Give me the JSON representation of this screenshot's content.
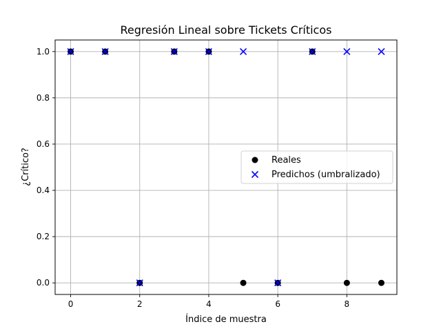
{
  "chart_data": {
    "type": "scatter",
    "title": "Regresión Lineal sobre Tickets Críticos",
    "xlabel": "Índice de muestra",
    "ylabel": "¿Crítico?",
    "xlim": [
      -0.45,
      9.45
    ],
    "ylim": [
      -0.05,
      1.05
    ],
    "xticks": [
      0,
      2,
      4,
      6,
      8
    ],
    "xtick_labels": [
      "0",
      "2",
      "4",
      "6",
      "8"
    ],
    "yticks": [
      0.0,
      0.2,
      0.4,
      0.6,
      0.8,
      1.0
    ],
    "ytick_labels": [
      "0.0",
      "0.2",
      "0.4",
      "0.6",
      "0.8",
      "1.0"
    ],
    "grid": true,
    "legend_position": "center-right",
    "series": [
      {
        "name": "Reales",
        "marker": "circle",
        "color": "#000000",
        "x": [
          0,
          1,
          2,
          3,
          4,
          5,
          6,
          7,
          8,
          9
        ],
        "y": [
          1,
          1,
          0,
          1,
          1,
          0,
          0,
          1,
          0,
          0
        ]
      },
      {
        "name": "Predichos (umbralizado)",
        "marker": "x",
        "color": "#0000ff",
        "x": [
          0,
          1,
          2,
          3,
          4,
          5,
          6,
          7,
          8,
          9
        ],
        "y": [
          1,
          1,
          0,
          1,
          1,
          1,
          0,
          1,
          1,
          1
        ]
      }
    ]
  }
}
